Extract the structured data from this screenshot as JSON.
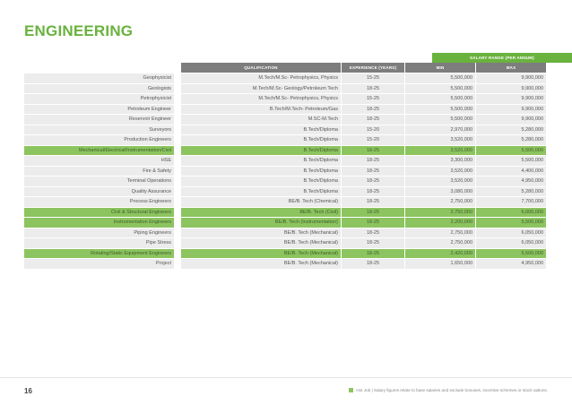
{
  "page": {
    "title": "ENGINEERING",
    "page_number": "16",
    "footnote": "Hot Job  |  Salary figures relate to base salaries and exclude bonuses, incentive schemes or stock options."
  },
  "table": {
    "salary_range_label": "SALARY RANGE (PER ANNUM)",
    "headers": {
      "qualification": "QUALIFICATION",
      "experience": "EXPERIENCE (YEARS)",
      "min": "MIN",
      "max": "MAX"
    },
    "rows": [
      {
        "role": "Geophysicist",
        "qualification": "M.Tech/M.Sc- Petrophysics, Physics",
        "experience": "15-25",
        "min": "5,500,000",
        "max": "9,900,000",
        "hot": false
      },
      {
        "role": "Geologists",
        "qualification": "M.Tech/M.Sc- Geology/Petroleum Tech",
        "experience": "18-25",
        "min": "5,500,000",
        "max": "9,900,000",
        "hot": false
      },
      {
        "role": "Petrophysicist",
        "qualification": "M.Tech/M.Sc- Petrophysics, Physics",
        "experience": "15-25",
        "min": "5,500,000",
        "max": "9,900,000",
        "hot": false
      },
      {
        "role": "Petroleum Engineer",
        "qualification": "B.Tech/M.Tech- Petroleum/Gas",
        "experience": "18-25",
        "min": "5,500,000",
        "max": "9,900,000",
        "hot": false
      },
      {
        "role": "Reservoir Engineer",
        "qualification": "M.SC-M.Tech",
        "experience": "18-25",
        "min": "5,500,000",
        "max": "9,900,000",
        "hot": false
      },
      {
        "role": "Surveyors",
        "qualification": "B.Tech/Diploma",
        "experience": "15-20",
        "min": "2,970,000",
        "max": "5,280,000",
        "hot": false
      },
      {
        "role": "Production Engineers",
        "qualification": "B.Tech/Diploma",
        "experience": "15-20",
        "min": "3,520,000",
        "max": "5,280,000",
        "hot": false
      },
      {
        "role": "Mechanical/Electrical/Instrumentation/Civil",
        "qualification": "B.Tech/Diploma",
        "experience": "18-25",
        "min": "3,520,000",
        "max": "5,500,000",
        "hot": true
      },
      {
        "role": "HSE",
        "qualification": "B.Tech/Diploma",
        "experience": "18-25",
        "min": "3,300,000",
        "max": "5,500,000",
        "hot": false
      },
      {
        "role": "Fire & Safety",
        "qualification": "B.Tech/Diploma",
        "experience": "18-25",
        "min": "3,520,000",
        "max": "4,400,000",
        "hot": false
      },
      {
        "role": "Terminal Operations",
        "qualification": "B.Tech/Diploma",
        "experience": "18-25",
        "min": "3,520,000",
        "max": "4,950,000",
        "hot": false
      },
      {
        "role": "Quality Assurance",
        "qualification": "B.Tech/Diploma",
        "experience": "18-25",
        "min": "3,080,000",
        "max": "5,280,000",
        "hot": false
      },
      {
        "role": "Process Engineers",
        "qualification": "BE/B. Tech (Chemical)",
        "experience": "18-25",
        "min": "2,750,000",
        "max": "7,700,000",
        "hot": false
      },
      {
        "role": "Civil & Structural Engineers",
        "qualification": "BE/B. Tech (Civil)",
        "experience": "18-25",
        "min": "2,750,000",
        "max": "6,600,000",
        "hot": true
      },
      {
        "role": "Instrumentation Engineers",
        "qualification": "BE/B. Tech (Instrumentation)",
        "experience": "18-25",
        "min": "2,200,000",
        "max": "5,500,000",
        "hot": true
      },
      {
        "role": "Piping Engineers",
        "qualification": "BE/B. Tech (Mechanical)",
        "experience": "18-25",
        "min": "2,750,000",
        "max": "6,050,000",
        "hot": false
      },
      {
        "role": "Pipe Stress",
        "qualification": "BE/B. Tech (Mechanical)",
        "experience": "18-25",
        "min": "2,750,000",
        "max": "6,050,000",
        "hot": false
      },
      {
        "role": "Rotating/Static Equipment Engineers",
        "qualification": "BE/B. Tech (Mechanical)",
        "experience": "18-25",
        "min": "2,420,000",
        "max": "5,500,000",
        "hot": true
      },
      {
        "role": "Project",
        "qualification": "BE/B. Tech (Mechanical)",
        "experience": "18-25",
        "min": "1,650,000",
        "max": "4,950,000",
        "hot": false
      }
    ]
  },
  "colors": {
    "accent": "#6ab23e",
    "hot_row": "#8cc45f",
    "row": "#ececec",
    "header": "#7d7d7d"
  }
}
